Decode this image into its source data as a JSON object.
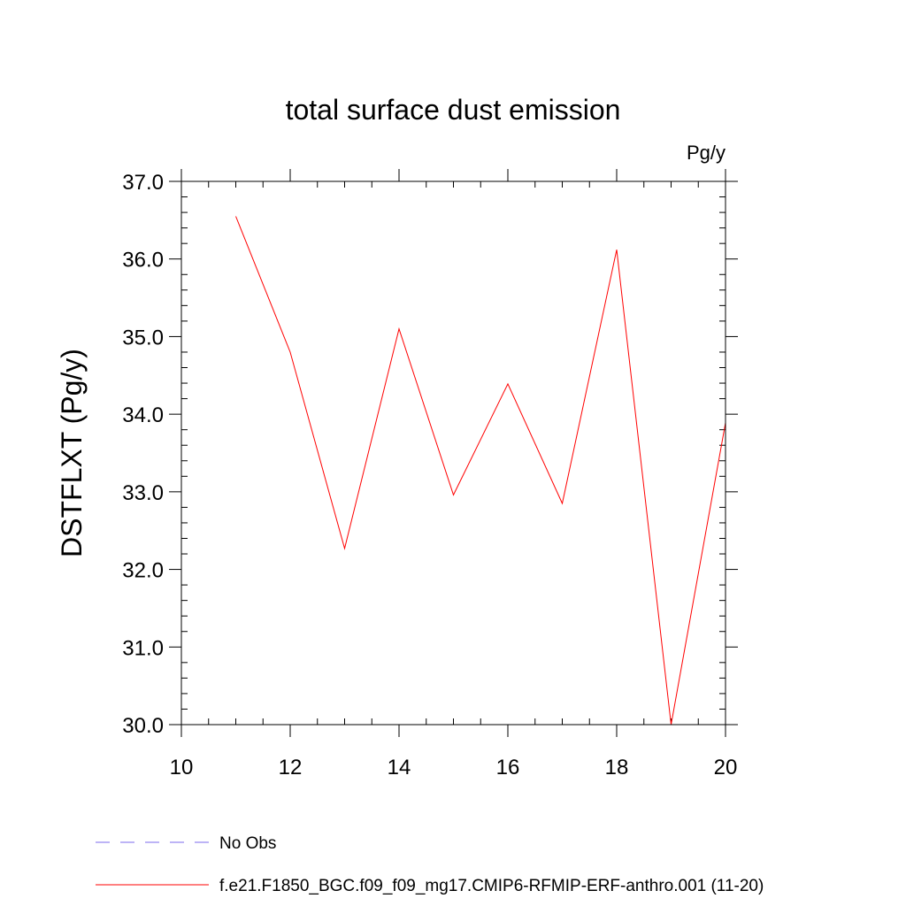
{
  "chart_data": {
    "type": "line",
    "title": "total surface dust emission",
    "units_label": "Pg/y",
    "ylabel": "DSTFLXT  (Pg/y)",
    "xlabel": "",
    "xlim": [
      10,
      20
    ],
    "ylim": [
      30.0,
      37.0
    ],
    "x_ticks": [
      10,
      12,
      14,
      16,
      18,
      20
    ],
    "x_tick_labels": [
      "10",
      "12",
      "14",
      "16",
      "18",
      "20"
    ],
    "y_ticks": [
      30.0,
      31.0,
      32.0,
      33.0,
      34.0,
      35.0,
      36.0,
      37.0
    ],
    "y_tick_labels": [
      "30.0",
      "31.0",
      "32.0",
      "33.0",
      "34.0",
      "35.0",
      "36.0",
      "37.0"
    ],
    "grid": false,
    "legend_position": "bottom",
    "series": [
      {
        "name": "f.e21.F1850_BGC.f09_f09_mg17.CMIP6-RFMIP-ERF-anthro.001 (11-20)",
        "color": "#ff0000",
        "style": "solid",
        "x": [
          11,
          12,
          13,
          14,
          15,
          16,
          17,
          18,
          19,
          20
        ],
        "y": [
          36.55,
          34.8,
          32.27,
          35.1,
          32.96,
          34.39,
          32.85,
          36.12,
          30.0,
          33.89
        ]
      }
    ],
    "legend": [
      {
        "label": "No Obs",
        "color": "#7b68ee",
        "style": "dashed"
      },
      {
        "label": "f.e21.F1850_BGC.f09_f09_mg17.CMIP6-RFMIP-ERF-anthro.001 (11-20)",
        "color": "#ff0000",
        "style": "solid"
      }
    ]
  }
}
